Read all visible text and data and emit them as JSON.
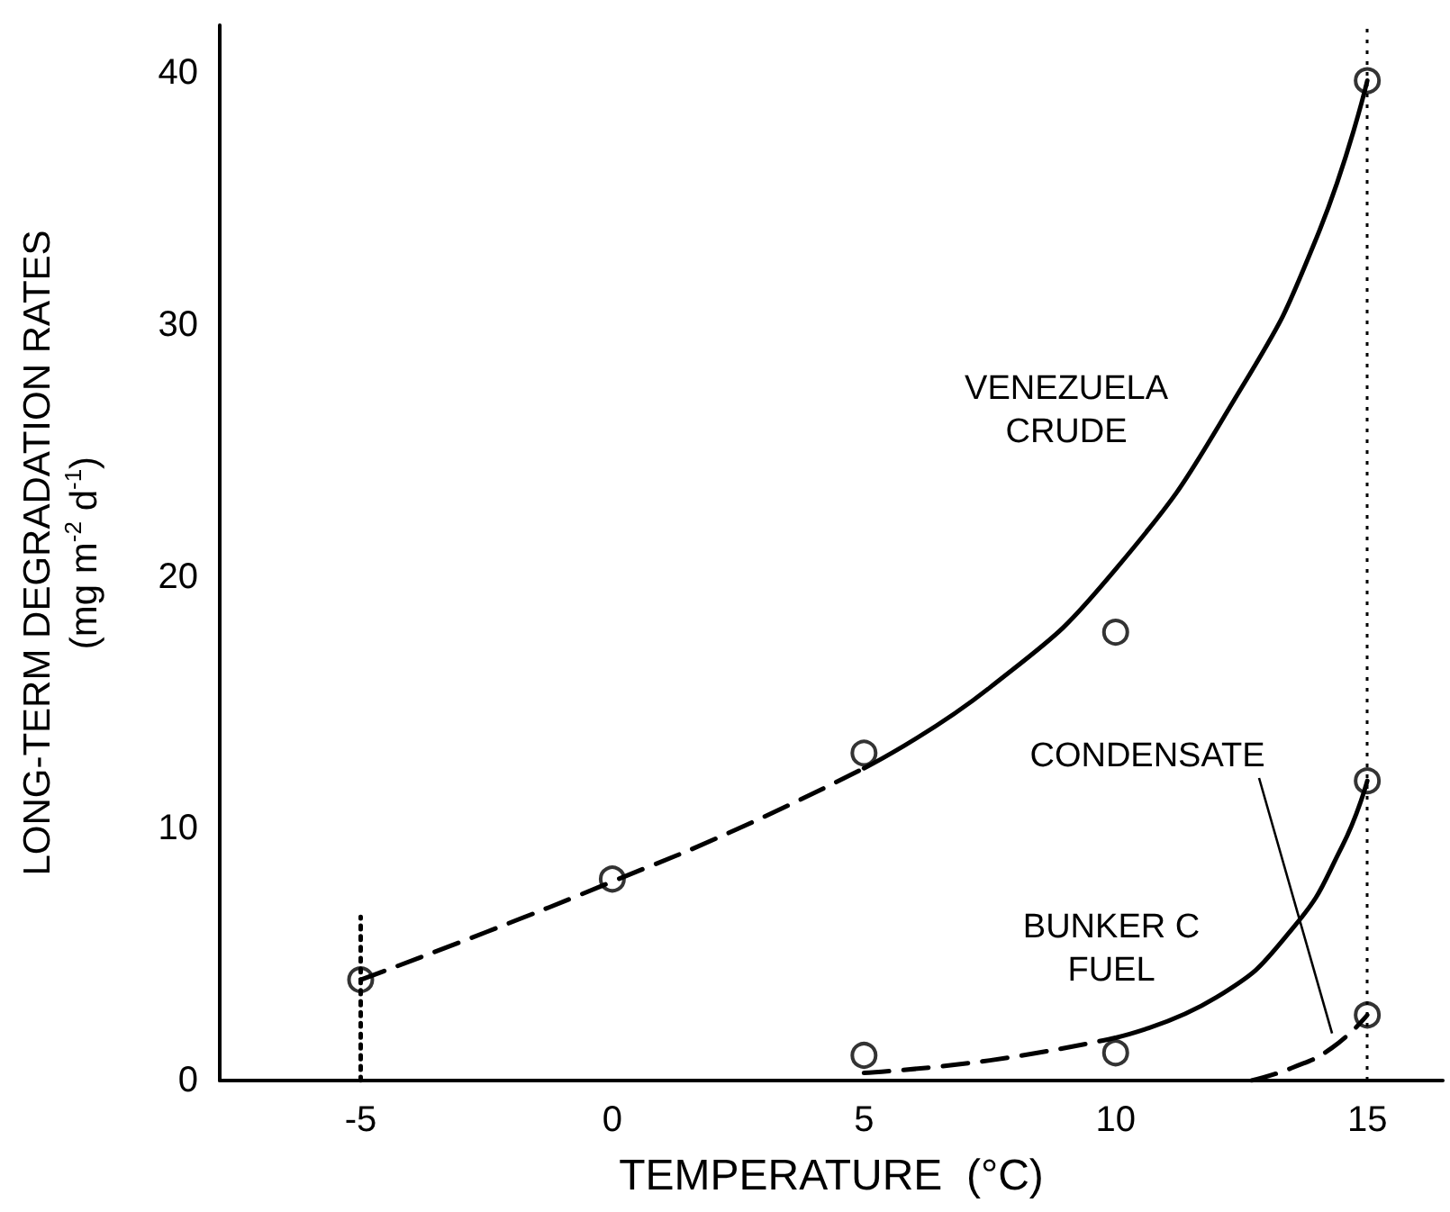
{
  "chart_data": {
    "type": "scatter",
    "xlabel": "TEMPERATURE  (°C)",
    "ylabel": "LONG-TERM DEGRADATION RATES\n(mg m$^{-2}$ d$^{-1}$)",
    "xlim": [
      -7.8,
      16.5
    ],
    "ylim": [
      0,
      41.9
    ],
    "xticks": [
      -5,
      0,
      5,
      10,
      15
    ],
    "yticks": [
      0,
      10,
      20,
      30,
      40
    ],
    "grid": false,
    "marker": "circle",
    "series": [
      {
        "type": "scatter",
        "color": "#000000",
        "x": [
          -5,
          0,
          5,
          10,
          15
        ],
        "values": [
          4,
          8,
          13,
          17.8,
          39.7
        ]
      },
      {
        "type": "scatter",
        "color": "#000000",
        "x": [
          5,
          10,
          15
        ],
        "values": [
          1,
          1.1,
          11.9
        ]
      },
      {
        "type": "scatter",
        "color": "#000000",
        "x": [
          15
        ],
        "values": [
          2.6
        ]
      },
      {
        "type": "line",
        "color": "#000000",
        "marker": "none",
        "line_style": "dashed",
        "x": [
          -5,
          -2.5,
          0,
          2.5,
          5
        ],
        "values": [
          4,
          5.9,
          7.9,
          10,
          12.4
        ]
      },
      {
        "type": "line",
        "color": "#000000",
        "marker": "none",
        "line_style": "solid",
        "x": [
          5,
          7.5,
          10,
          12.5,
          14,
          15
        ],
        "values": [
          12.4,
          15.6,
          20.3,
          27.5,
          33.5,
          39.7
        ]
      },
      {
        "type": "line",
        "color": "#000000",
        "marker": "none",
        "line_style": "dashed",
        "x": [
          5,
          7.5,
          10
        ],
        "values": [
          0.3,
          0.8,
          1.7
        ]
      },
      {
        "type": "line",
        "color": "#000000",
        "marker": "none",
        "line_style": "solid",
        "x": [
          10,
          12,
          13.5,
          14.5,
          15
        ],
        "values": [
          1.7,
          3.3,
          6,
          9.3,
          11.9
        ]
      },
      {
        "type": "line",
        "color": "#000000",
        "marker": "none",
        "line_style": "dashed",
        "x": [
          12.7,
          13.5,
          14.3,
          15
        ],
        "values": [
          0,
          0.5,
          1.3,
          2.6
        ]
      },
      {
        "type": "line",
        "color": "#000000",
        "marker": "none",
        "line_style": "dotted",
        "x": [
          -5,
          -5
        ],
        "values": [
          0,
          6.5
        ]
      }
    ],
    "ref_lines": [
      {
        "axis": "x",
        "value": 15,
        "label": null,
        "color": "#000000",
        "line_style": "dotted"
      }
    ],
    "annotations": [
      "VENEZUELA\nCRUDE",
      "CONDENSATE",
      "BUNKER C\nFUEL"
    ]
  }
}
